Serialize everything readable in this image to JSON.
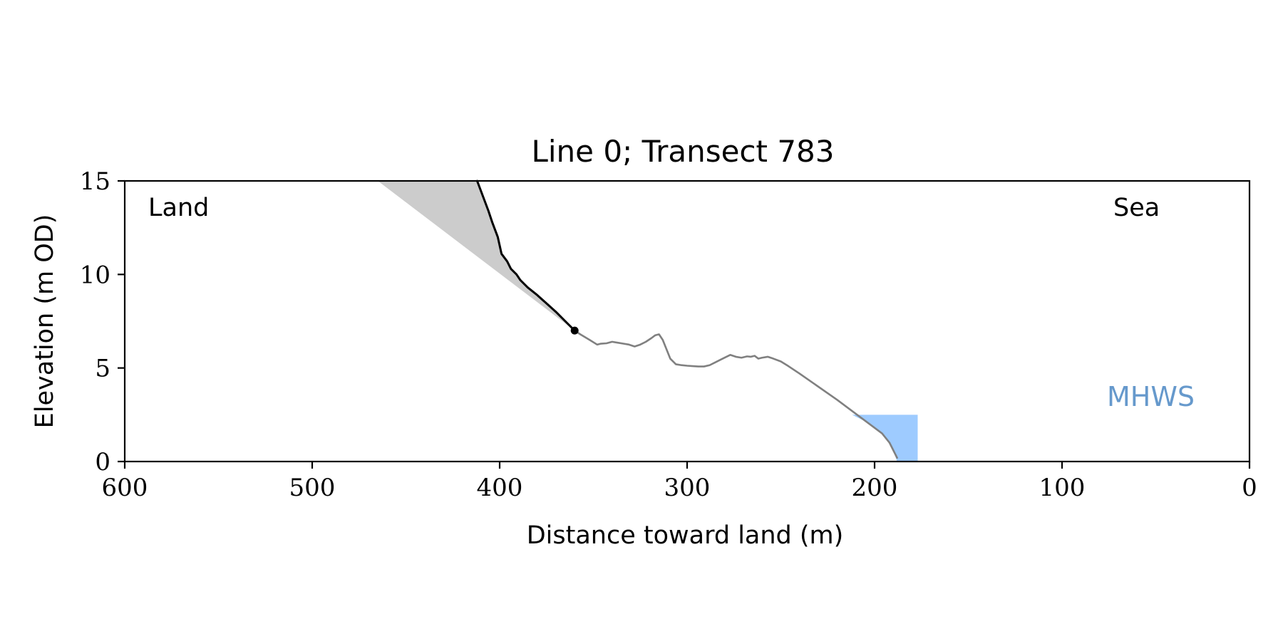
{
  "chart_data": {
    "type": "line",
    "title": "Line 0; Transect 783",
    "xlabel": "Distance toward land (m)",
    "ylabel": "Elevation (m OD)",
    "xlim": [
      600,
      0
    ],
    "ylim": [
      0,
      15
    ],
    "x_ticks": [
      600,
      500,
      400,
      300,
      200,
      100,
      0
    ],
    "y_ticks": [
      0,
      5,
      10,
      15
    ],
    "grid": false,
    "annotations": {
      "land_label": "Land",
      "sea_label": "Sea",
      "mhws_label": "MHWS"
    },
    "colors": {
      "profile": "#808080",
      "cliff": "#000000",
      "shade": "#cccccc",
      "mhws_fill": "#9ecbff",
      "mhws_text": "#6699cc"
    },
    "series": [
      {
        "role": "profile",
        "x": [
          360,
          357,
          352,
          348,
          346,
          343,
          340,
          337,
          334,
          331,
          328,
          325,
          322,
          319,
          317,
          315,
          313,
          311,
          309,
          306,
          303,
          300,
          297,
          294,
          291,
          288,
          285,
          282,
          280,
          277,
          274,
          271,
          268,
          266,
          264,
          262,
          260,
          257,
          254,
          250,
          246,
          240,
          220,
          212,
          204,
          196,
          192,
          190,
          188
        ],
        "y": [
          7.0,
          6.8,
          6.5,
          6.25,
          6.3,
          6.32,
          6.4,
          6.35,
          6.3,
          6.25,
          6.15,
          6.25,
          6.4,
          6.6,
          6.75,
          6.8,
          6.5,
          6.0,
          5.5,
          5.2,
          5.15,
          5.12,
          5.1,
          5.08,
          5.08,
          5.15,
          5.3,
          5.45,
          5.55,
          5.7,
          5.6,
          5.55,
          5.62,
          5.6,
          5.65,
          5.5,
          5.55,
          5.6,
          5.5,
          5.35,
          5.1,
          4.7,
          3.3,
          2.7,
          2.1,
          1.5,
          1.0,
          0.6,
          0.2
        ]
      },
      {
        "role": "cliff",
        "x": [
          412,
          409,
          406,
          404,
          401,
          399,
          396,
          394,
          391,
          389,
          385,
          380,
          375,
          370,
          365,
          360
        ],
        "y": [
          15.0,
          14.2,
          13.4,
          12.8,
          12.0,
          11.1,
          10.7,
          10.3,
          10.0,
          9.7,
          9.3,
          8.9,
          8.45,
          8.0,
          7.5,
          7.0
        ]
      }
    ],
    "shaded_region": {
      "x": [
        465,
        412,
        409,
        406,
        404,
        401,
        399,
        396,
        394,
        391,
        389,
        385,
        380,
        375,
        370,
        365,
        360
      ],
      "y": [
        15.0,
        15.0,
        14.2,
        13.4,
        12.8,
        12.0,
        11.1,
        10.7,
        10.3,
        10.0,
        9.7,
        9.3,
        8.9,
        8.45,
        8.0,
        7.5,
        7.0
      ]
    },
    "cliff_toe_point": {
      "x": 360,
      "y": 7.0
    },
    "mhws_region": {
      "level": 2.5,
      "profile_x": [
        212,
        204,
        196,
        192,
        190,
        188
      ],
      "profile_y": [
        2.5,
        2.1,
        1.5,
        1.0,
        0.6,
        0.0
      ],
      "right_edge_x": 177
    }
  }
}
